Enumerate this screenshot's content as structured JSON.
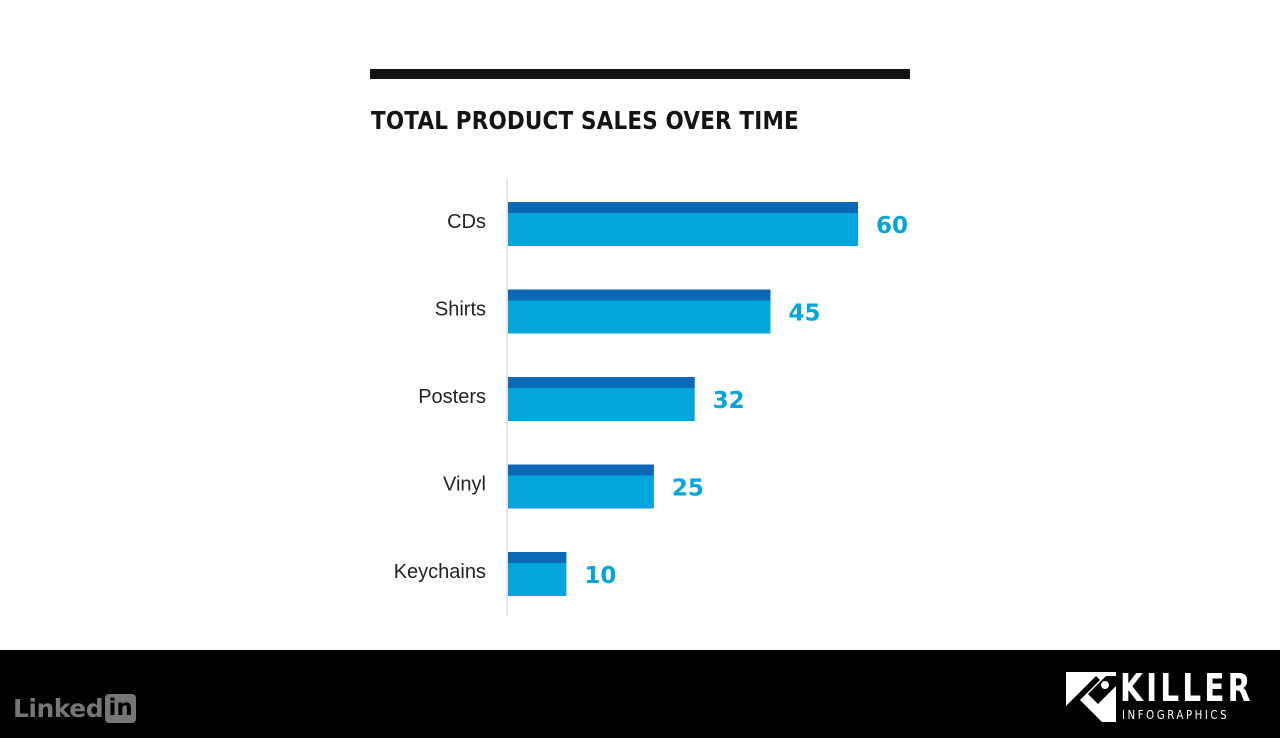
{
  "colors": {
    "bar_main": "#03a5da",
    "bar_top": "#0a68b5",
    "value_label": "#03a5da",
    "axis_line": "#cccccc",
    "rule": "#141414",
    "footer_bg": "#000000"
  },
  "chart_data": {
    "type": "bar",
    "orientation": "horizontal",
    "title": "TOTAL PRODUCT SALES OVER TIME",
    "categories": [
      "CDs",
      "Shirts",
      "Posters",
      "Vinyl",
      "Keychains"
    ],
    "values": [
      60,
      45,
      32,
      25,
      10
    ],
    "value_labels": [
      "60",
      "45",
      "32",
      "25",
      "10"
    ],
    "xlim": [
      0,
      60
    ],
    "xlabel": "",
    "ylabel": "",
    "grid": false,
    "legend": "none"
  },
  "footer": {
    "linkedin_text": "Linked",
    "linkedin_box": "in",
    "logo_word": "KILLER",
    "logo_sub": "INFOGRAPHICS"
  }
}
